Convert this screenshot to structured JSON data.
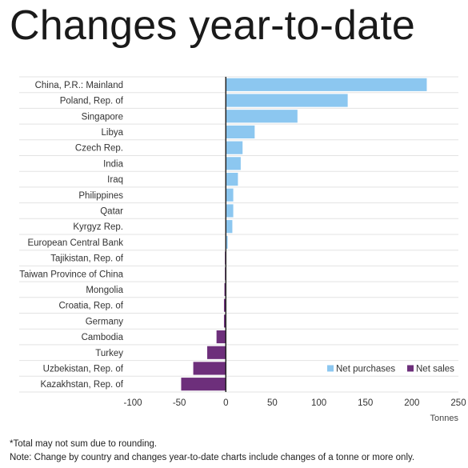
{
  "title": "Changes year-to-date",
  "chart_data": {
    "type": "bar",
    "orientation": "horizontal",
    "categories": [
      "China, P.R.: Mainland",
      "Poland, Rep. of",
      "Singapore",
      "Libya",
      "Czech Rep.",
      "India",
      "Iraq",
      "Philippines",
      "Qatar",
      "Kyrgyz Rep.",
      "European Central Bank",
      "Tajikistan, Rep. of",
      "Taiwan Province of China",
      "Mongolia",
      "Croatia, Rep. of",
      "Germany",
      "Cambodia",
      "Turkey",
      "Uzbekistan, Rep. of",
      "Kazakhstan, Rep. of"
    ],
    "values": [
      216,
      131,
      77,
      31,
      18,
      16,
      13,
      8,
      8,
      7,
      2,
      -1,
      -1,
      -1.5,
      -2,
      -2,
      -10,
      -20,
      -35,
      -48
    ],
    "series": [
      {
        "name": "Net purchases",
        "color": "#8cc7f0"
      },
      {
        "name": "Net sales",
        "color": "#6d2f7b"
      }
    ],
    "xlabel": "Tonnes",
    "xlim": [
      -100,
      250
    ],
    "xticks": [
      -100,
      -50,
      0,
      50,
      100,
      150,
      200,
      250
    ],
    "grid": "horizontal",
    "legend": "bottom-right"
  },
  "footnotes": [
    "*Total may not sum due to rounding.",
    "Note: Change by country and changes year-to-date charts include changes of a tonne or more only."
  ]
}
